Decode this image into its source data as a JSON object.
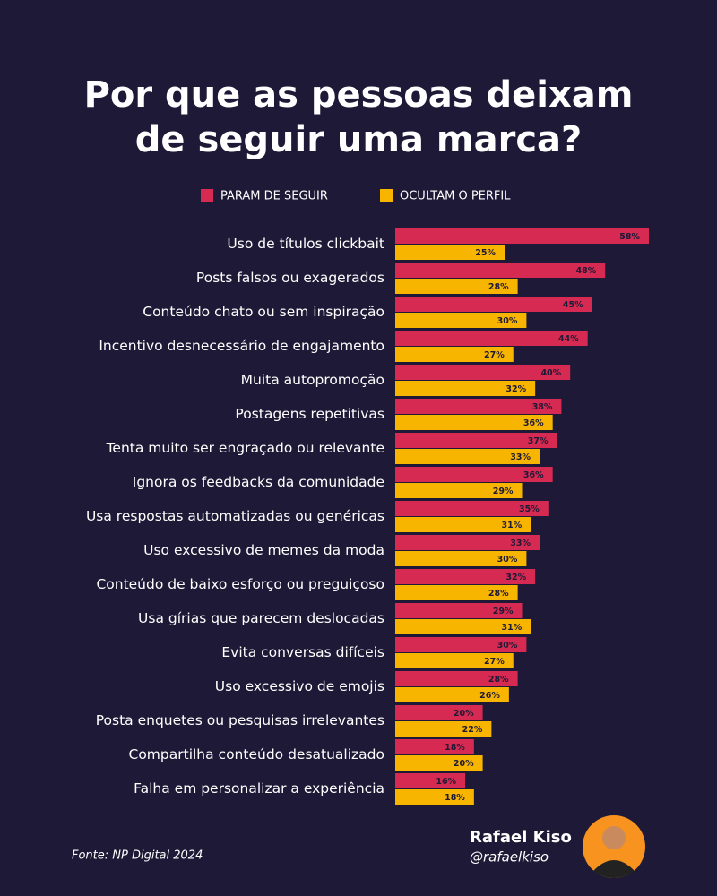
{
  "chart_data": {
    "type": "bar",
    "orientation": "horizontal",
    "title": [
      "Por que as pessoas deixam",
      "de seguir uma marca?"
    ],
    "categories": [
      "Uso de títulos clickbait",
      "Posts falsos ou exagerados",
      "Conteúdo chato ou sem inspiração",
      "Incentivo desnecessário de engajamento",
      "Muita autopromoção",
      "Postagens repetitivas",
      "Tenta muito ser engraçado ou relevante",
      "Ignora os feedbacks da comunidade",
      "Usa respostas automatizadas ou genéricas",
      "Uso excessivo de memes da moda",
      "Conteúdo de baixo esforço ou preguiçoso",
      "Usa gírias que parecem deslocadas",
      "Evita conversas difíceis",
      "Uso excessivo de emojis",
      "Posta enquetes ou pesquisas irrelevantes",
      "Compartilha conteúdo desatualizado",
      "Falha em personalizar a experiência"
    ],
    "series": [
      {
        "name": "PARAM DE SEGUIR",
        "color": "#d62a52",
        "values": [
          58,
          48,
          45,
          44,
          40,
          38,
          37,
          36,
          35,
          33,
          32,
          29,
          30,
          28,
          20,
          18,
          16
        ],
        "value_labels": [
          "58%",
          "48%",
          "45%",
          "44%",
          "40%",
          "38%",
          "37%",
          "36%",
          "35%",
          "33%",
          "32%",
          "29%",
          "30%",
          "28%",
          "20%",
          "18%",
          "16%"
        ]
      },
      {
        "name": "OCULTAM O PERFIL",
        "color": "#f7b500",
        "values": [
          25,
          28,
          30,
          27,
          32,
          36,
          33,
          29,
          31,
          30,
          28,
          31,
          27,
          26,
          22,
          20,
          18
        ],
        "value_labels": [
          "25%",
          "28%",
          "30%",
          "27%",
          "32%",
          "36%",
          "33%",
          "29%",
          "31%",
          "30%",
          "28%",
          "31%",
          "27%",
          "26%",
          "22%",
          "20%",
          "18%"
        ]
      }
    ],
    "source": "Fonte: NP Digital 2024",
    "author": "Rafael Kiso",
    "handle": "@rafaelkiso"
  }
}
